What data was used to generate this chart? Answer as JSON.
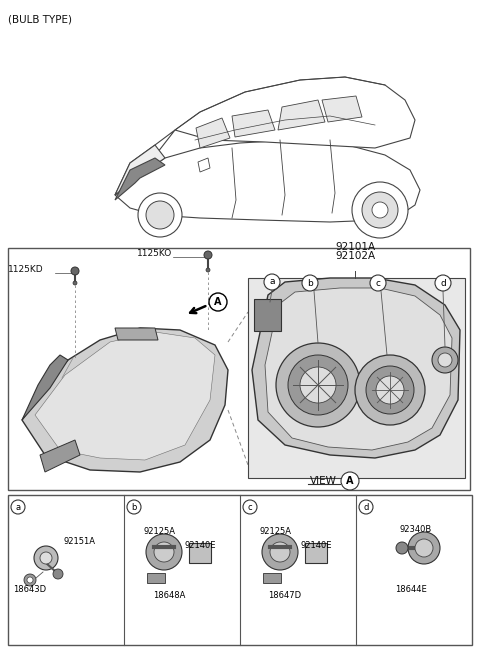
{
  "title": "(BULB TYPE)",
  "bg_color": "#ffffff",
  "part_labels": {
    "main_parts": [
      "92101A",
      "92102A"
    ],
    "bolts": [
      "1125KO",
      "1125KD"
    ],
    "section_labels": [
      "a",
      "b",
      "c",
      "d"
    ],
    "view_label": "VIEW",
    "section_A": "A"
  },
  "bottom_parts": [
    {
      "label": "a",
      "part1": "92151A",
      "part2": "18643D"
    },
    {
      "label": "b",
      "part1": "92125A",
      "part2": "92140E",
      "part3": "18648A"
    },
    {
      "label": "c",
      "part1": "92125A",
      "part2": "92140E",
      "part3": "18647D"
    },
    {
      "label": "d",
      "part1": "92340B",
      "part2": "18644E"
    }
  ]
}
